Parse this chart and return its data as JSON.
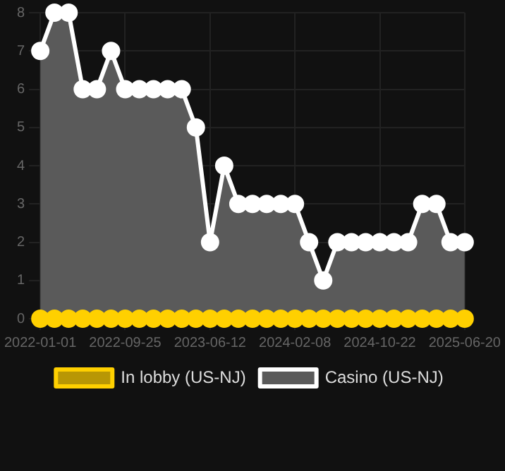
{
  "chart_data": {
    "type": "line",
    "categories": [
      "2022-01-01",
      null,
      null,
      null,
      null,
      null,
      "2022-09-25",
      null,
      null,
      null,
      null,
      null,
      "2023-06-12",
      null,
      null,
      null,
      null,
      null,
      "2024-02-08",
      null,
      null,
      null,
      null,
      null,
      "2024-10-22",
      null,
      null,
      null,
      null,
      null,
      "2025-06-20"
    ],
    "series": [
      {
        "name": "In lobby (US-NJ)",
        "type": "line",
        "color": "#ffd000",
        "values": [
          0,
          0,
          0,
          0,
          0,
          0,
          0,
          0,
          0,
          0,
          0,
          0,
          0,
          0,
          0,
          0,
          0,
          0,
          0,
          0,
          0,
          0,
          0,
          0,
          0,
          0,
          0,
          0,
          0,
          0,
          0
        ]
      },
      {
        "name": "Casino (US-NJ)",
        "type": "area",
        "color": "#ffffff",
        "values": [
          7,
          8,
          8,
          6,
          6,
          7,
          6,
          6,
          6,
          6,
          6,
          5,
          2,
          4,
          3,
          3,
          3,
          3,
          3,
          2,
          1,
          2,
          2,
          2,
          2,
          2,
          2,
          3,
          3,
          2,
          2
        ]
      }
    ],
    "ylim": [
      0,
      8
    ],
    "yticks": [
      0,
      1,
      2,
      3,
      4,
      5,
      6,
      7,
      8
    ],
    "grid": true,
    "legend": "bottom",
    "marker": "circle"
  }
}
